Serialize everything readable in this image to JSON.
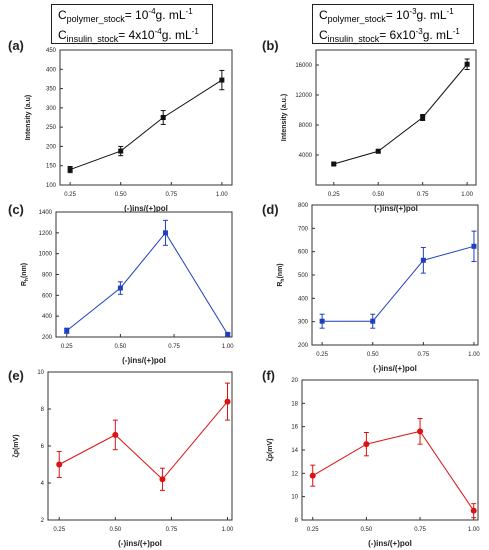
{
  "conditions": [
    {
      "polymer": {
        "symbol": "C",
        "sub": "polymer_stock",
        "pre": "= 10",
        "exp": "-4",
        "post": "g. mL",
        "unit_exp": "-1"
      },
      "insulin": {
        "symbol": "C",
        "sub": "insulin_stock",
        "pre": "= 4x10",
        "exp": "-4",
        "post": "g. mL",
        "unit_exp": "-1"
      }
    },
    {
      "polymer": {
        "symbol": "C",
        "sub": "polymer_stock",
        "pre": "= 10",
        "exp": "-3",
        "post": "g. mL",
        "unit_exp": "-1"
      },
      "insulin": {
        "symbol": "C",
        "sub": "insulin_stock",
        "pre": "= 6x10",
        "exp": "-3",
        "post": "g. mL",
        "unit_exp": "-1"
      }
    }
  ],
  "chart_data": [
    {
      "panel": "(a)",
      "type": "line",
      "color": "#111111",
      "marker": "square",
      "xlabel": "(-)ins/(+)pol",
      "ylabel": "Intensity (a.u)",
      "xlim": [
        0.2,
        1.05
      ],
      "ylim": [
        100,
        450
      ],
      "xticks": [
        0.25,
        0.5,
        0.75,
        1.0
      ],
      "xtick_labels": [
        "0.25",
        "0.50",
        "0.75",
        "1.00"
      ],
      "yticks": [
        100,
        150,
        200,
        250,
        300,
        350,
        400,
        450
      ],
      "x": [
        0.25,
        0.5,
        0.71,
        1.0
      ],
      "y": [
        140,
        188,
        275,
        372
      ],
      "err": [
        8,
        12,
        18,
        25
      ]
    },
    {
      "panel": "(b)",
      "type": "line",
      "color": "#111111",
      "marker": "square",
      "xlabel": "(-)ins/(+)pol",
      "ylabel": "Intensity (a.u.)",
      "xlim": [
        0.15,
        1.05
      ],
      "ylim": [
        0,
        18000
      ],
      "xticks": [
        0.25,
        0.5,
        0.75,
        1.0
      ],
      "xtick_labels": [
        "0.25",
        "0.50",
        "0.75",
        "1.00"
      ],
      "yticks": [
        4000,
        8000,
        12000,
        16000
      ],
      "x": [
        0.25,
        0.5,
        0.75,
        1.0
      ],
      "y": [
        2800,
        4500,
        9000,
        16100
      ],
      "err": [
        150,
        200,
        400,
        700
      ]
    },
    {
      "panel": "(c)",
      "type": "line",
      "color": "#1f3fbf",
      "marker": "square",
      "xlabel": "(-)ins/(+)pol",
      "ylabel": "R",
      "ylabel_sub": "h",
      "ylabel_unit": "(nm)",
      "xlim": [
        0.2,
        1.02
      ],
      "ylim": [
        200,
        1400
      ],
      "xticks": [
        0.25,
        0.5,
        0.75,
        1.0
      ],
      "xtick_labels": [
        "0.25",
        "0.50",
        "0.75",
        "1.00"
      ],
      "yticks": [
        200,
        400,
        600,
        800,
        1000,
        1200,
        1400
      ],
      "x": [
        0.25,
        0.5,
        0.71,
        1.0
      ],
      "y": [
        260,
        670,
        1200,
        225
      ],
      "err": [
        25,
        60,
        120,
        15
      ]
    },
    {
      "panel": "(d)",
      "type": "line",
      "color": "#1f3fbf",
      "marker": "square",
      "xlabel": "(-)ins/(+)pol",
      "ylabel": "R",
      "ylabel_sub": "h",
      "ylabel_unit": "(nm)",
      "xlim": [
        0.2,
        1.02
      ],
      "ylim": [
        200,
        800
      ],
      "xticks": [
        0.25,
        0.5,
        0.75,
        1.0
      ],
      "xtick_labels": [
        "0.25",
        "0.50",
        "0.75",
        "1.00"
      ],
      "yticks": [
        200,
        300,
        400,
        500,
        600,
        700,
        800
      ],
      "x": [
        0.25,
        0.5,
        0.75,
        1.0
      ],
      "y": [
        302,
        302,
        563,
        623
      ],
      "err": [
        30,
        30,
        55,
        65
      ]
    },
    {
      "panel": "(e)",
      "type": "line",
      "color": "#dd1111",
      "marker": "circle",
      "xlabel": "(-)ins/(+)pol",
      "ylabel": "ζp(mV)",
      "xlim": [
        0.2,
        1.02
      ],
      "ylim": [
        2,
        10
      ],
      "xticks": [
        0.25,
        0.5,
        0.75,
        1.0
      ],
      "xtick_labels": [
        "0.25",
        "0.50",
        "0.75",
        "1.00"
      ],
      "yticks": [
        2,
        4,
        6,
        8,
        10
      ],
      "x": [
        0.25,
        0.5,
        0.71,
        1.0
      ],
      "y": [
        5.0,
        6.6,
        4.2,
        8.4
      ],
      "err": [
        0.7,
        0.8,
        0.6,
        1.0
      ]
    },
    {
      "panel": "(f)",
      "type": "line",
      "color": "#dd1111",
      "marker": "circle",
      "xlabel": "(-)ins/(+)pol",
      "ylabel": "ζp(mV)",
      "xlim": [
        0.2,
        1.02
      ],
      "ylim": [
        8,
        20
      ],
      "xticks": [
        0.25,
        0.5,
        0.75,
        1.0
      ],
      "xtick_labels": [
        "0.25",
        "0.50",
        "0.75",
        "1.00"
      ],
      "yticks": [
        8,
        10,
        12,
        14,
        16,
        18,
        20
      ],
      "x": [
        0.25,
        0.5,
        0.75,
        1.0
      ],
      "y": [
        11.8,
        14.5,
        15.6,
        8.8
      ],
      "err": [
        0.9,
        1.0,
        1.1,
        0.6
      ]
    }
  ]
}
